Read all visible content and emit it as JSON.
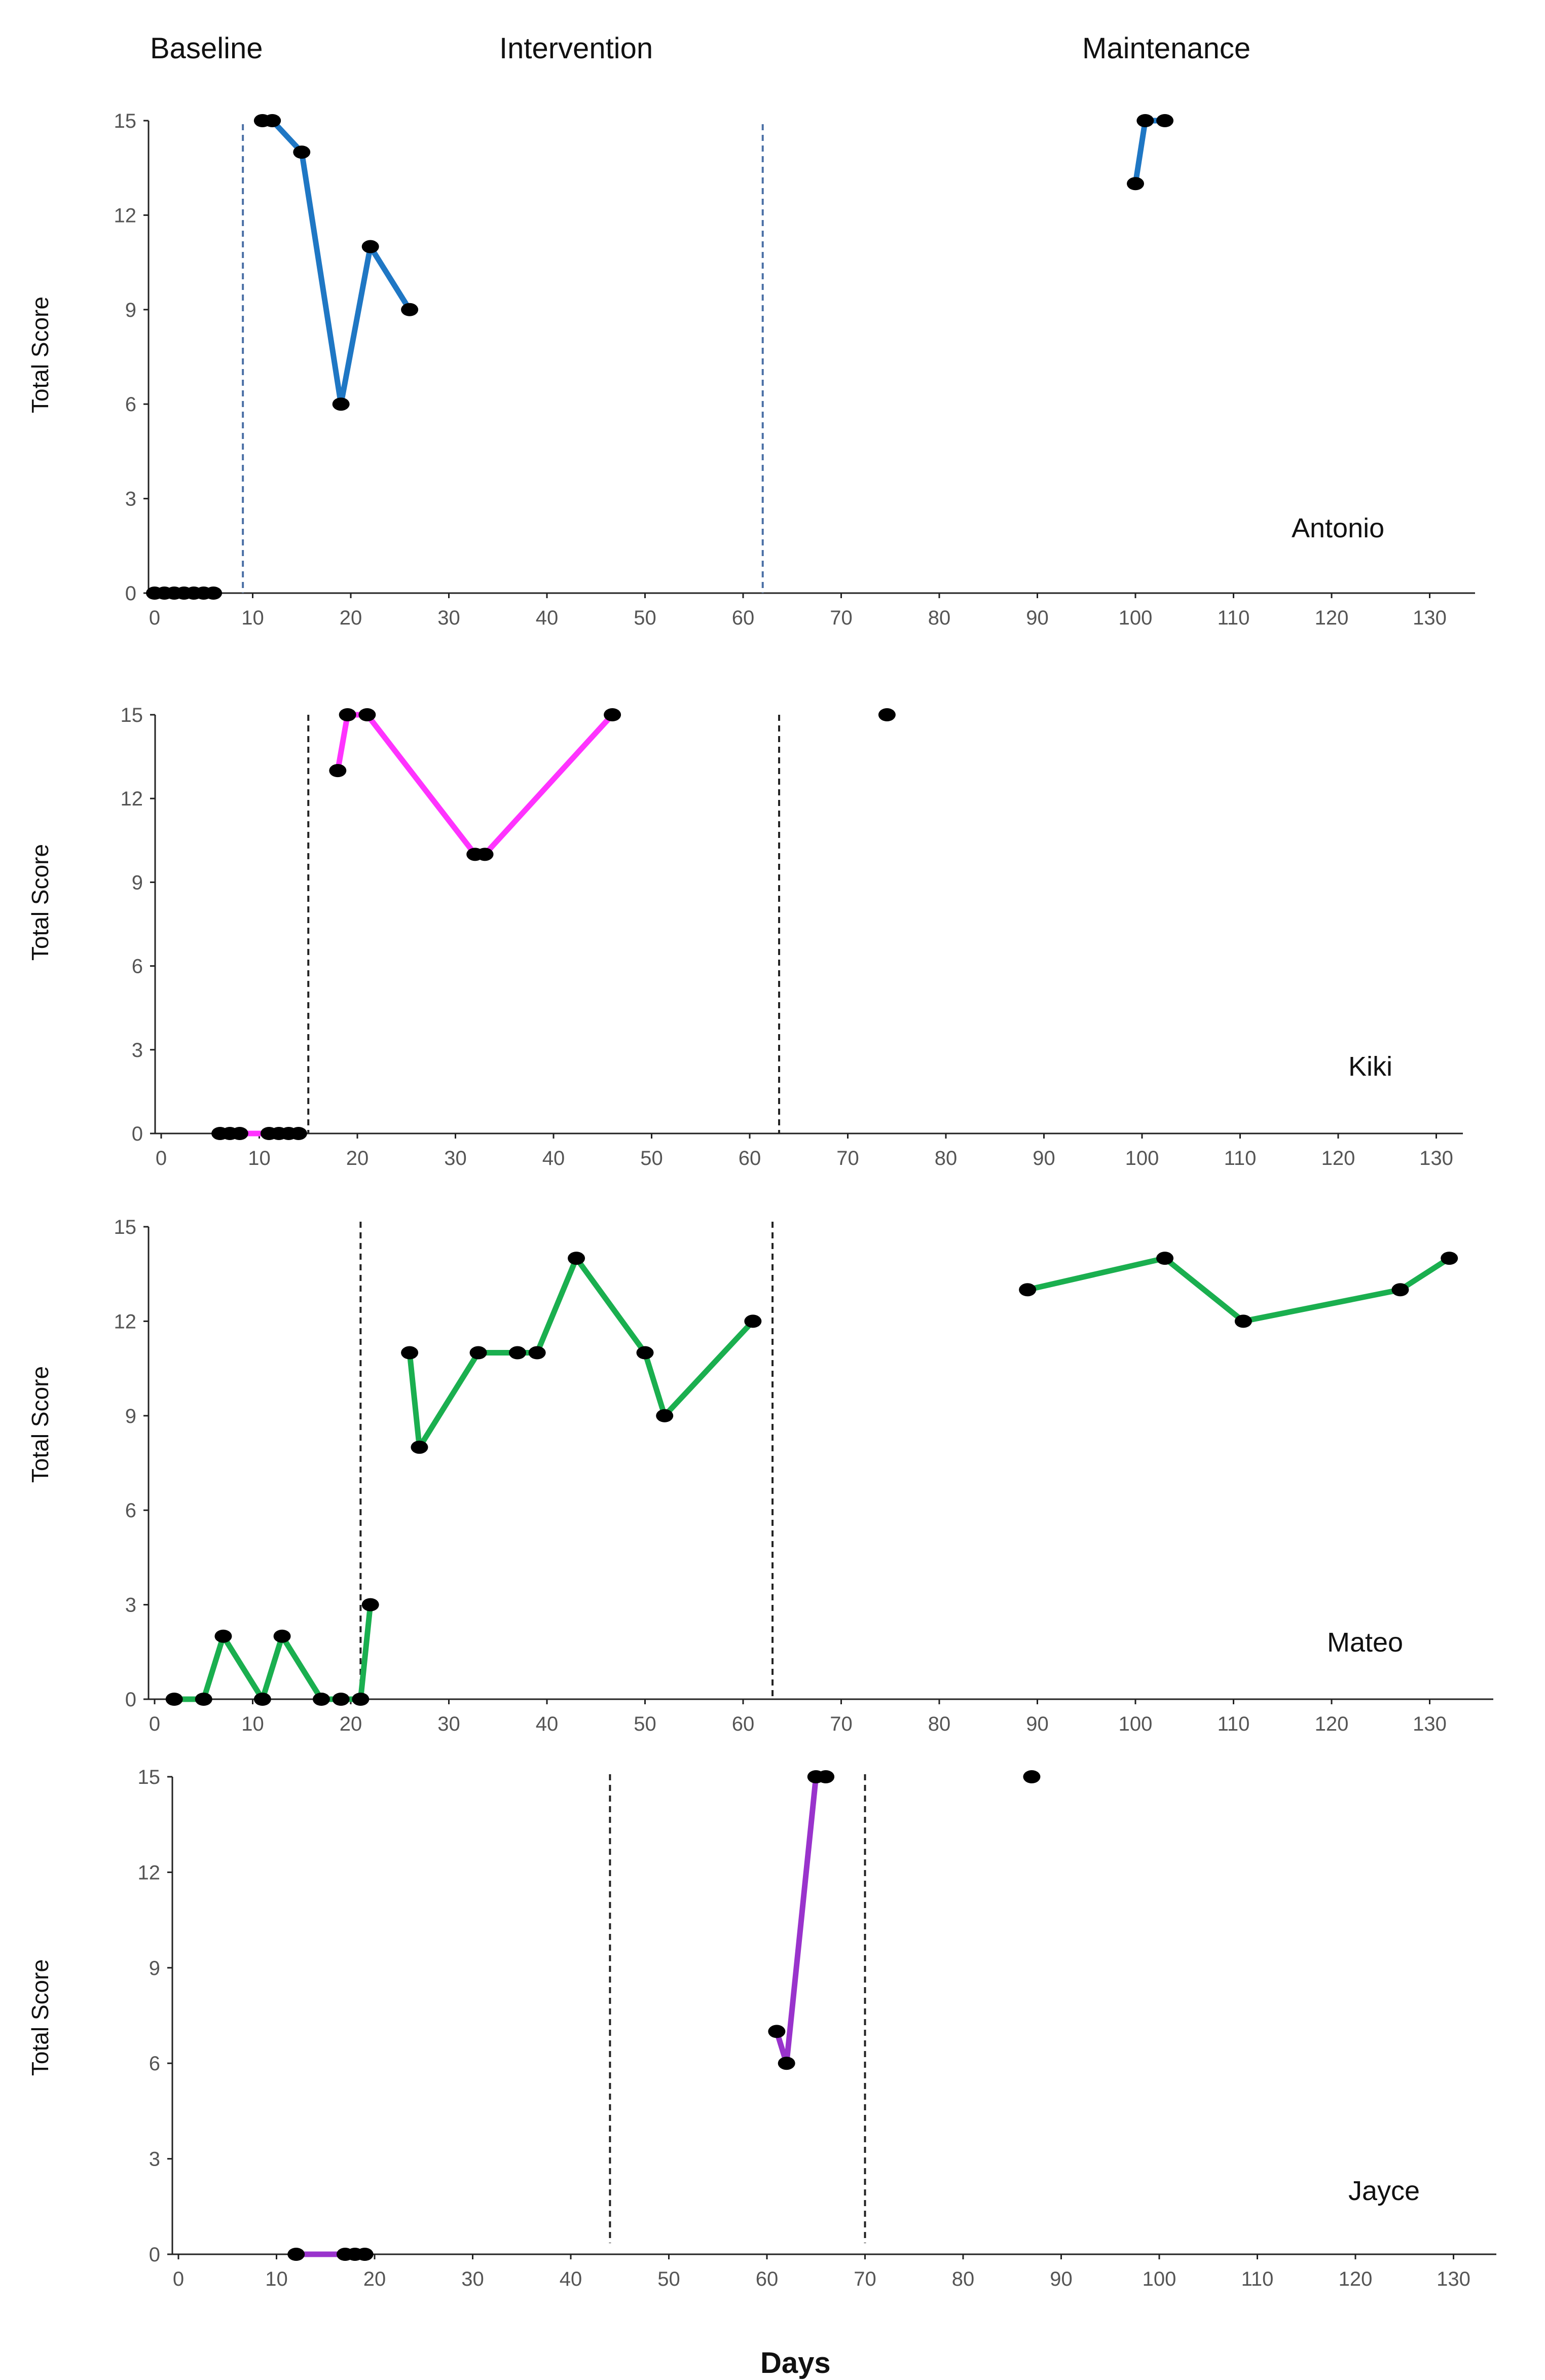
{
  "phase_labels": {
    "baseline": "Baseline",
    "intervention": "Intervention",
    "maintenance": "Maintenance"
  },
  "xlabel": "Days",
  "chart_data": [
    {
      "type": "line",
      "participant": "Antonio",
      "ylabel": "Total Score",
      "color": "#1f77c4",
      "ylim": [
        0,
        15
      ],
      "yticks": [
        0,
        3,
        6,
        9,
        12,
        15
      ],
      "xlim": [
        0,
        135
      ],
      "xticks": [
        0,
        10,
        20,
        30,
        40,
        50,
        60,
        70,
        80,
        90,
        100,
        110,
        120,
        130
      ],
      "phase_lines": [
        9,
        62
      ],
      "phase_line_color": "#4a6fa5",
      "segments": [
        [
          [
            0,
            0
          ],
          [
            1,
            0
          ],
          [
            2,
            0
          ],
          [
            3,
            0
          ],
          [
            4,
            0
          ],
          [
            5,
            0
          ],
          [
            6,
            0
          ]
        ],
        [
          [
            11,
            15
          ],
          [
            12,
            15
          ],
          [
            15,
            14
          ],
          [
            19,
            6
          ],
          [
            22,
            11
          ],
          [
            26,
            9
          ]
        ],
        [
          [
            100,
            13
          ],
          [
            101,
            15
          ],
          [
            103,
            15
          ]
        ]
      ]
    },
    {
      "type": "line",
      "participant": "Kiki",
      "ylabel": "Total Score",
      "color": "#ff33ff",
      "ylim": [
        0,
        15
      ],
      "yticks": [
        0,
        3,
        6,
        9,
        12,
        15
      ],
      "xlim": [
        0,
        135
      ],
      "xticks": [
        0,
        10,
        20,
        30,
        40,
        50,
        60,
        70,
        80,
        90,
        100,
        110,
        120,
        130
      ],
      "phase_lines": [
        15,
        63
      ],
      "phase_line_color": "#222222",
      "segments": [
        [
          [
            6,
            0
          ],
          [
            7,
            0
          ],
          [
            8,
            0
          ],
          [
            11,
            0
          ],
          [
            12,
            0
          ],
          [
            13,
            0
          ],
          [
            14,
            0
          ]
        ],
        [
          [
            18,
            13
          ],
          [
            19,
            15
          ],
          [
            21,
            15
          ],
          [
            32,
            10
          ],
          [
            33,
            10
          ],
          [
            46,
            15
          ]
        ],
        [
          [
            74,
            15
          ]
        ]
      ]
    },
    {
      "type": "line",
      "participant": "Mateo",
      "ylabel": "Total Score",
      "color": "#1aaf4f",
      "ylim": [
        0,
        15
      ],
      "yticks": [
        0,
        3,
        6,
        9,
        12,
        15
      ],
      "xlim": [
        0,
        135
      ],
      "xticks": [
        0,
        10,
        20,
        30,
        40,
        50,
        60,
        70,
        80,
        90,
        100,
        110,
        120,
        130
      ],
      "phase_lines": [
        21,
        63
      ],
      "phase_line_color": "#222222",
      "segments": [
        [
          [
            2,
            0
          ],
          [
            5,
            0
          ],
          [
            7,
            2
          ],
          [
            11,
            0
          ],
          [
            13,
            2
          ],
          [
            17,
            0
          ],
          [
            19,
            0
          ],
          [
            21,
            0
          ],
          [
            22,
            3
          ]
        ],
        [
          [
            26,
            11
          ],
          [
            27,
            8
          ],
          [
            33,
            11
          ],
          [
            37,
            11
          ],
          [
            39,
            11
          ],
          [
            43,
            14
          ],
          [
            50,
            11
          ],
          [
            52,
            9
          ],
          [
            61,
            12
          ]
        ],
        [
          [
            89,
            13
          ],
          [
            103,
            14
          ],
          [
            111,
            12
          ],
          [
            127,
            13
          ],
          [
            132,
            14
          ]
        ]
      ]
    },
    {
      "type": "line",
      "participant": "Jayce",
      "ylabel": "Total Score",
      "color": "#9933cc",
      "ylim": [
        0,
        15
      ],
      "yticks": [
        0,
        3,
        6,
        9,
        12,
        15
      ],
      "xlim": [
        0,
        135
      ],
      "xticks": [
        0,
        10,
        20,
        30,
        40,
        50,
        60,
        70,
        80,
        90,
        100,
        110,
        120,
        130
      ],
      "phase_lines": [
        44,
        70
      ],
      "phase_line_color": "#222222",
      "segments": [
        [
          [
            12,
            0
          ],
          [
            17,
            0
          ],
          [
            18,
            0
          ],
          [
            19,
            0
          ]
        ],
        [
          [
            61,
            7
          ],
          [
            62,
            6
          ],
          [
            65,
            15
          ],
          [
            66,
            15
          ]
        ],
        [
          [
            87,
            15
          ]
        ]
      ]
    }
  ]
}
